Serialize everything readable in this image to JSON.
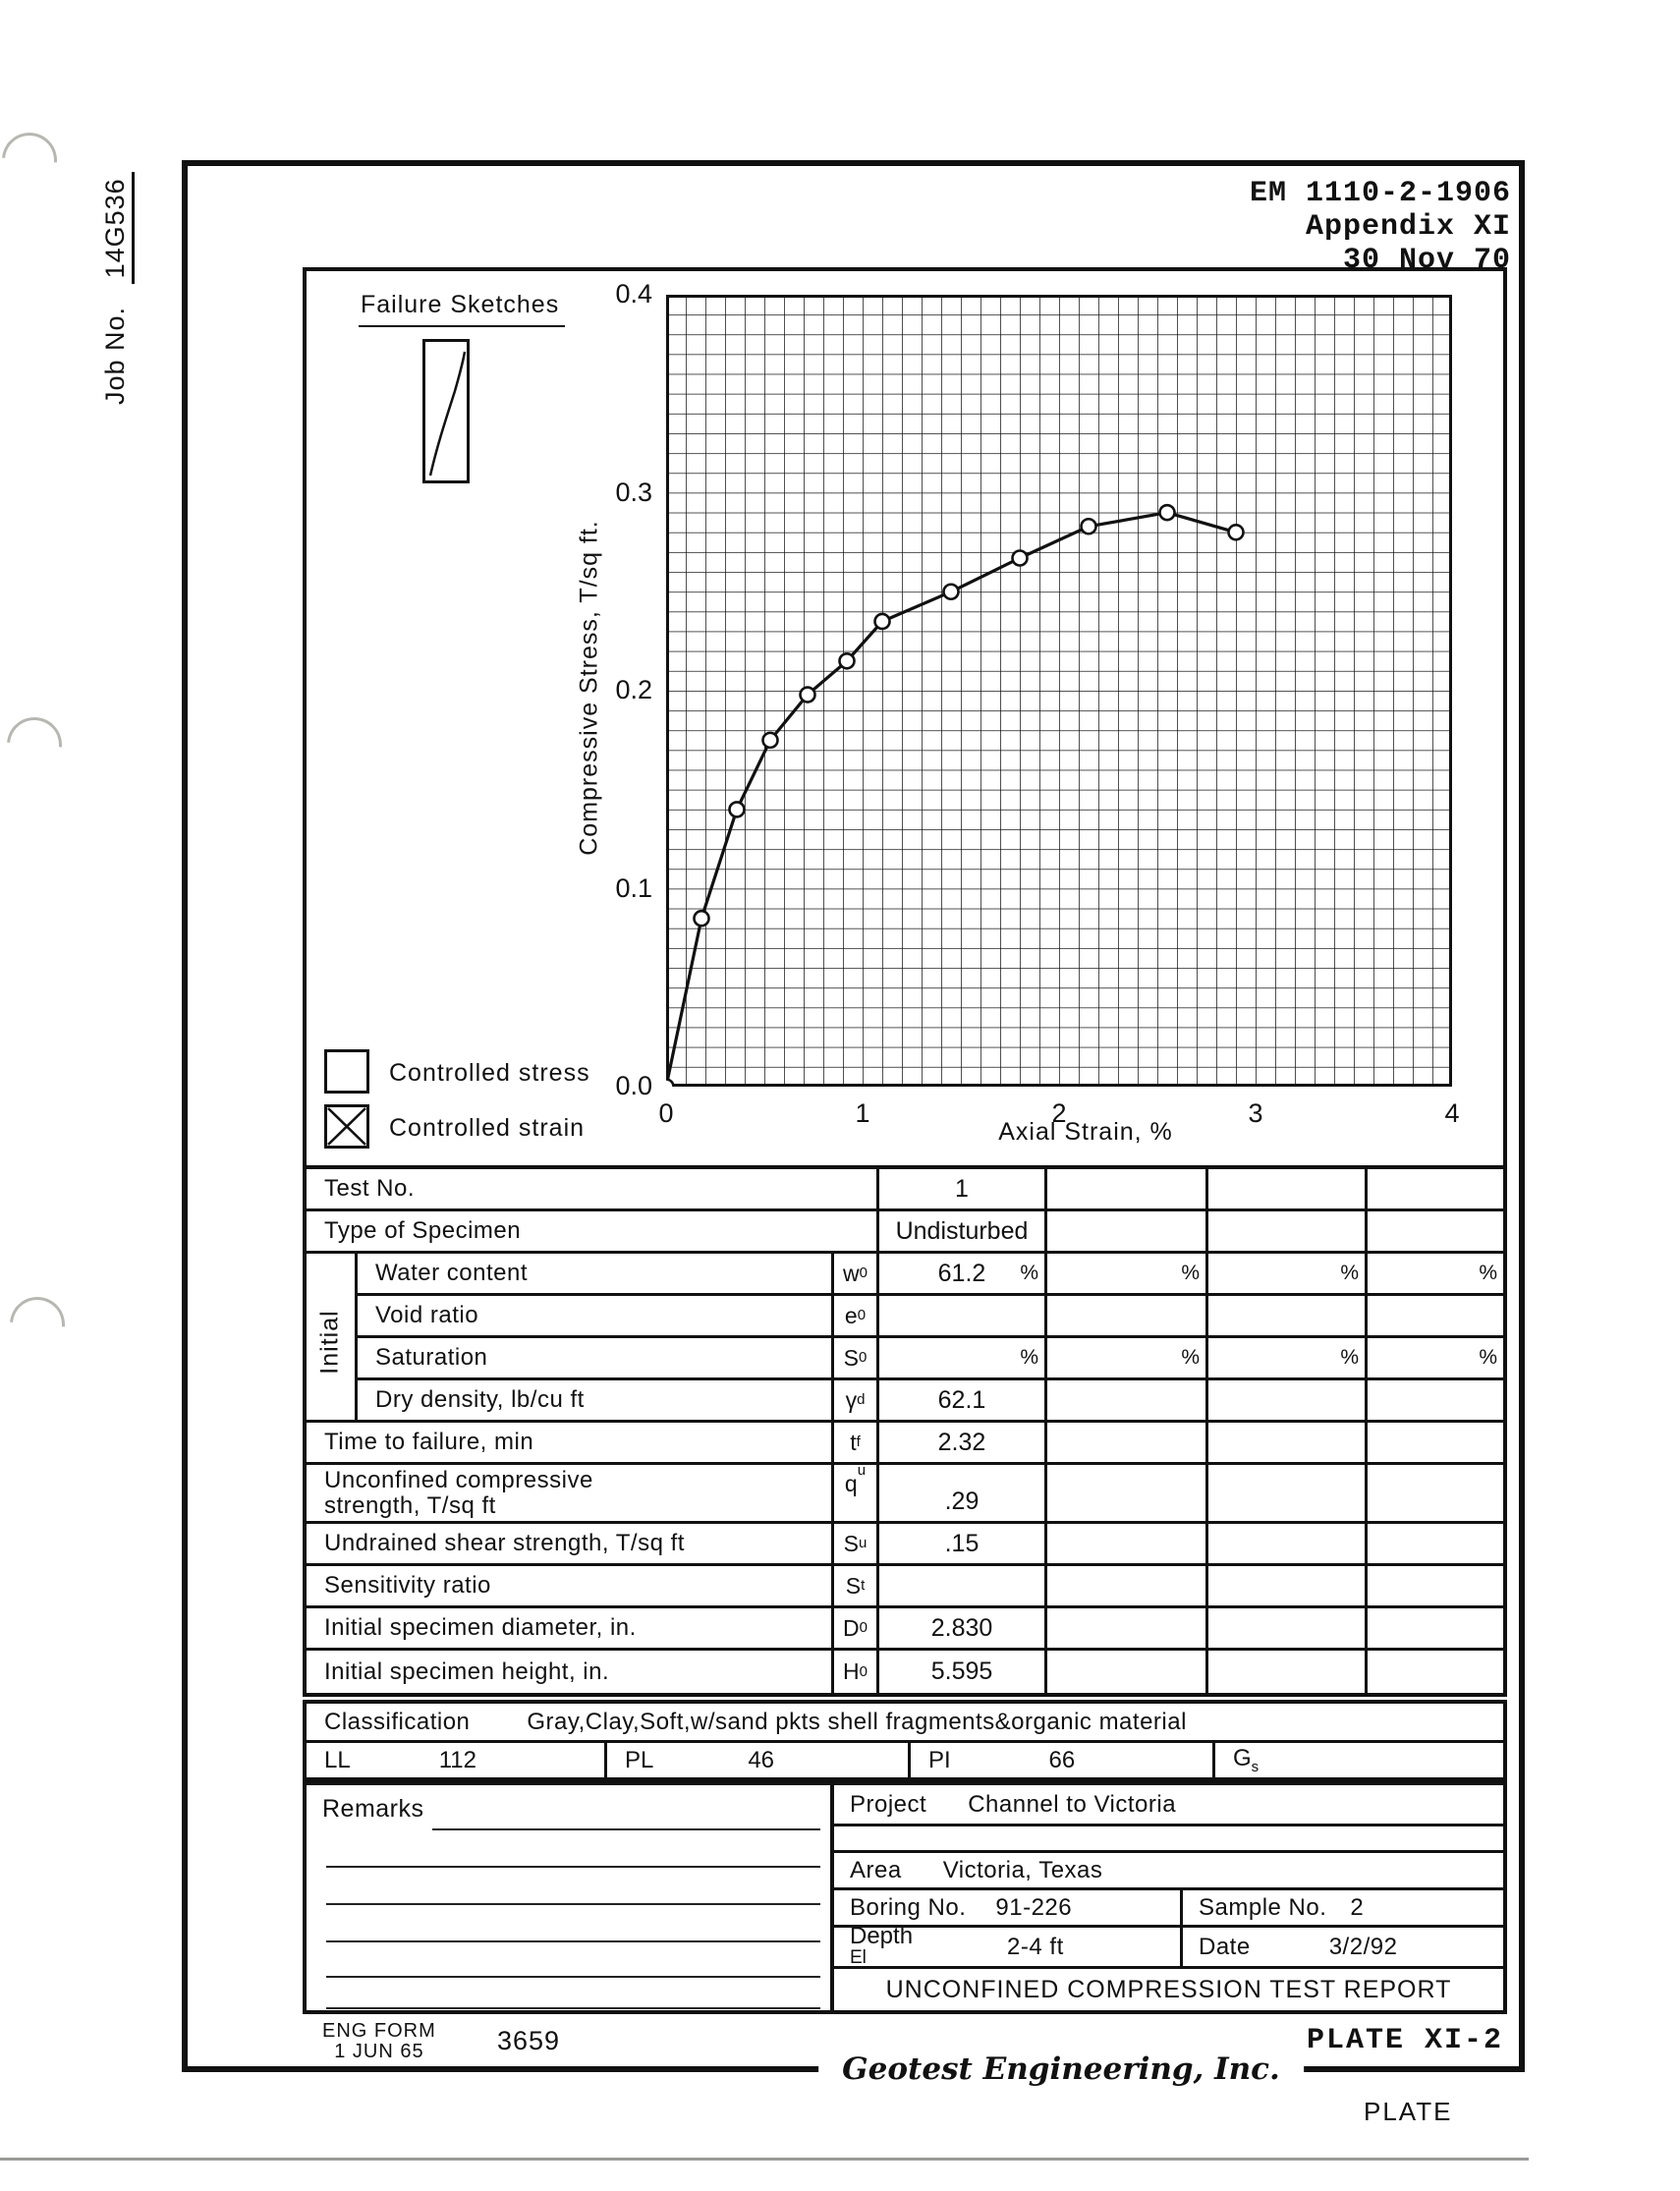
{
  "colors": {
    "ink": "#111111",
    "paper": "#ffffff",
    "punch_gray": "#b7b7b2"
  },
  "header": {
    "line1": "EM 1110-2-1906",
    "line2": "Appendix XI",
    "line3": "30 Nov 70"
  },
  "margin": {
    "job_label": "Job No.",
    "job_value": "14G536"
  },
  "chart_section": {
    "failure_sketches_label": "Failure Sketches",
    "legend": [
      {
        "symbol": "empty-square",
        "label": "Controlled stress"
      },
      {
        "symbol": "crossed-square",
        "label": "Controlled strain"
      }
    ]
  },
  "chart_data": {
    "type": "line",
    "title": "",
    "xlabel": "Axial Strain, %",
    "ylabel": "Compressive Stress, T/sq ft.",
    "xlim": [
      0,
      4
    ],
    "ylim": [
      0,
      0.4
    ],
    "x_ticks": [
      0,
      1,
      2,
      3,
      4
    ],
    "x_tick_labels": [
      "0",
      "1",
      "2",
      "3",
      "4"
    ],
    "y_ticks": [
      0.0,
      0.1,
      0.2,
      0.3,
      0.4
    ],
    "y_tick_labels": [
      "0.0",
      "0.1",
      "0.2",
      "0.3",
      "0.4"
    ],
    "grid": "fine grid, 0.1 strain x 0.01 stress per cell",
    "legend_position": "none",
    "series": [
      {
        "name": "Test No. 1 stress-strain curve",
        "marker": "open-circle",
        "x": [
          0,
          0.18,
          0.36,
          0.53,
          0.72,
          0.92,
          1.1,
          1.45,
          1.8,
          2.15,
          2.55,
          2.9
        ],
        "y": [
          0,
          0.085,
          0.14,
          0.175,
          0.198,
          0.215,
          0.235,
          0.25,
          0.267,
          0.283,
          0.29,
          0.28
        ]
      }
    ]
  },
  "table": {
    "pct": "%",
    "initial_group_label": "Initial",
    "rows": [
      {
        "label": "Test No.",
        "v1": "1"
      },
      {
        "label": "Type of Specimen",
        "v1": "Undisturbed"
      },
      {
        "label": "Water content",
        "sym": "w",
        "sym_sub": "0",
        "v1": "61.2"
      },
      {
        "label": "Void ratio",
        "sym": "e",
        "sym_sub": "0",
        "v1": ""
      },
      {
        "label": "Saturation",
        "sym": "S",
        "sym_sub": "0",
        "v1": ""
      },
      {
        "label": "Dry density, lb/cu ft",
        "sym": "γ",
        "sym_sub": "d",
        "v1": "62.1"
      },
      {
        "label": "Time to failure, min",
        "sym": "t",
        "sym_sub": "f",
        "v1": "2.32"
      },
      {
        "label": "Unconfined compressive\nstrength, T/sq ft",
        "sym": "q",
        "sym_sub": "u",
        "v1": ".29"
      },
      {
        "label": "Undrained shear strength, T/sq ft",
        "sym": "S",
        "sym_sub": "u",
        "v1": ".15"
      },
      {
        "label": "Sensitivity ratio",
        "sym": "S",
        "sym_sub": "t",
        "v1": ""
      },
      {
        "label": "Initial specimen diameter, in.",
        "sym": "D",
        "sym_sub": "0",
        "v1": "2.830"
      },
      {
        "label": "Initial specimen height, in.",
        "sym": "H",
        "sym_sub": "0",
        "v1": "5.595"
      }
    ]
  },
  "classification": {
    "label": "Classification",
    "value": "Gray,Clay,Soft,w/sand pkts shell fragments&organic material"
  },
  "atterberg": [
    {
      "label": "LL",
      "sub": "",
      "value": "112"
    },
    {
      "label": "PL",
      "sub": "",
      "value": "46"
    },
    {
      "label": "PI",
      "sub": "",
      "value": "66"
    },
    {
      "label": "G",
      "sub": "s",
      "value": ""
    }
  ],
  "remarks": {
    "label": "Remarks"
  },
  "project": {
    "project_label": "Project",
    "project_value": "Channel to Victoria",
    "area_label": "Area",
    "area_value": "Victoria, Texas",
    "boring_label": "Boring No.",
    "boring_value": "91-226",
    "sample_label": "Sample No.",
    "sample_value": "2",
    "depth_label": "Depth",
    "depth_sub_label": "El",
    "depth_value": "2-4 ft",
    "date_label": "Date",
    "date_value": "3/2/92",
    "report_title": "UNCONFINED COMPRESSION TEST REPORT"
  },
  "footer": {
    "eng_form_line1": "ENG FORM",
    "eng_form_line2": "1 JUN 65",
    "form_number": "3659",
    "company": "Geotest Engineering, Inc.",
    "plate_id": "PLATE XI-2",
    "plate_word": "PLATE"
  }
}
